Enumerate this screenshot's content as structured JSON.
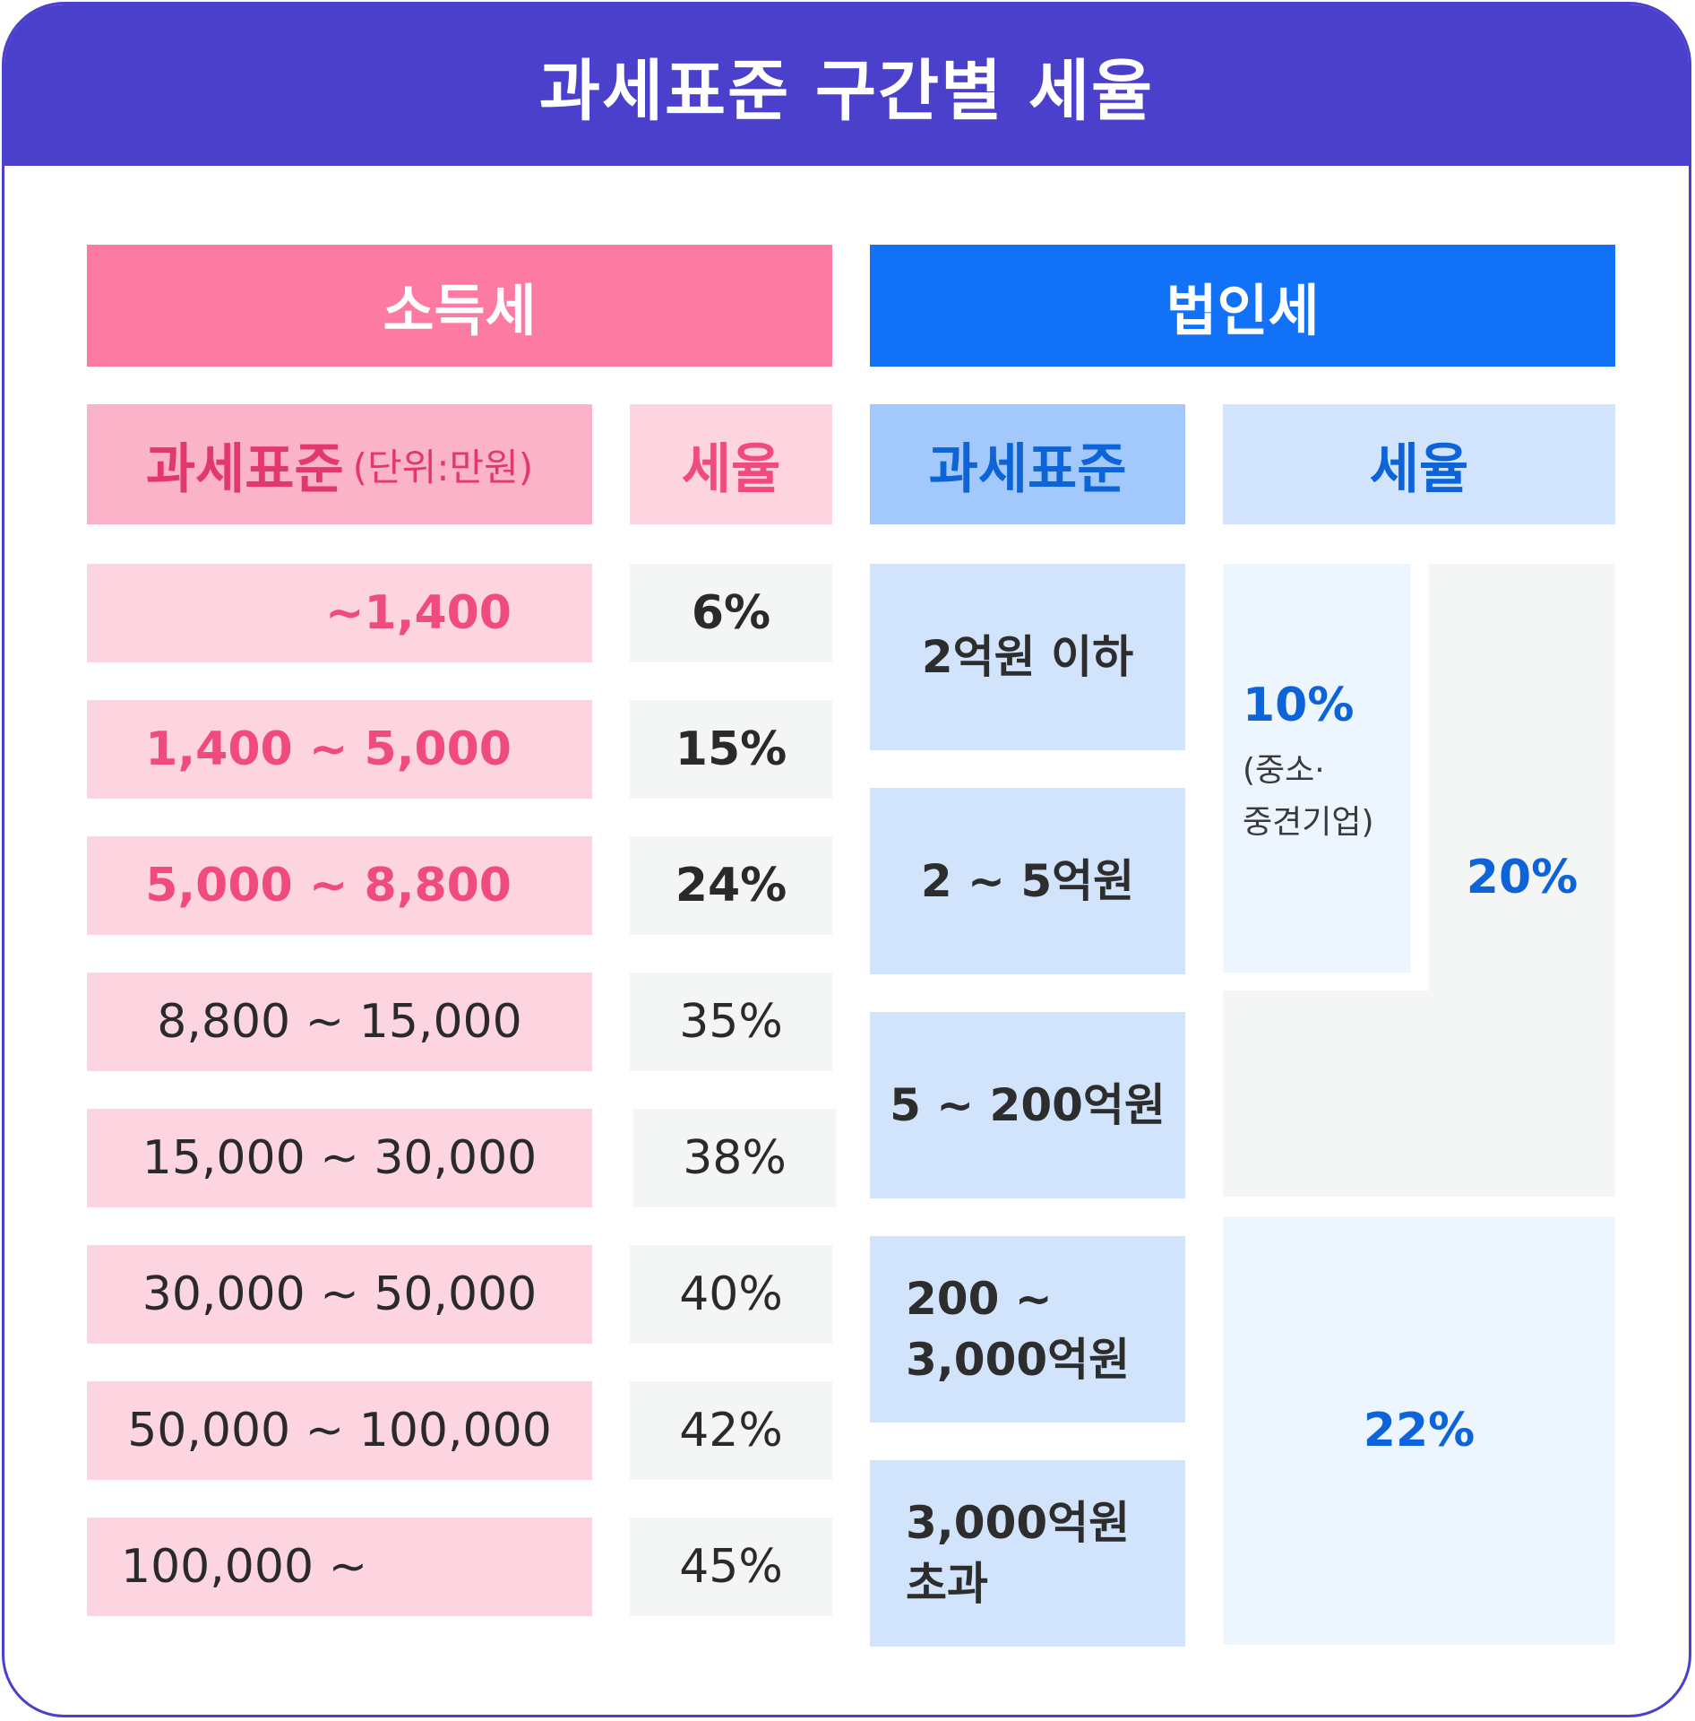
{
  "title": "과세표준 구간별 세율",
  "income_tax": {
    "header": "소득세",
    "col_base": "과세표준",
    "col_base_unit": "(단위:만원)",
    "col_rate": "세율",
    "rows": [
      {
        "range": "~1,400",
        "rate": "6%"
      },
      {
        "range": "1,400 ~ 5,000",
        "rate": "15%"
      },
      {
        "range": "5,000 ~ 8,800",
        "rate": "24%"
      },
      {
        "range": "8,800 ~ 15,000",
        "rate": "35%"
      },
      {
        "range": "15,000 ~ 30,000",
        "rate": "38%"
      },
      {
        "range": "30,000 ~ 50,000",
        "rate": "40%"
      },
      {
        "range": "50,000 ~ 100,000",
        "rate": "42%"
      },
      {
        "range": "100,000 ~",
        "rate": "45%"
      }
    ]
  },
  "corporate_tax": {
    "header": "법인세",
    "col_base": "과세표준",
    "col_rate": "세율",
    "rows": [
      {
        "range": "2억원 이하"
      },
      {
        "range": "2 ~ 5억원"
      },
      {
        "range": "5 ~ 200억원"
      },
      {
        "range": "200 ~\n3,000억원"
      },
      {
        "range": "3,000억원\n초과"
      }
    ],
    "rate_sme": "10%",
    "rate_sme_note": "(중소·\n중견기업)",
    "rate_general": "20%",
    "rate_top": "22%"
  },
  "colors": {
    "frame": "#4a40cc",
    "income_header": "#fd7ba3",
    "corp_header": "#1172f8",
    "income_text_pink": "#ef4b7d",
    "corp_text_blue": "#0d63d8"
  }
}
